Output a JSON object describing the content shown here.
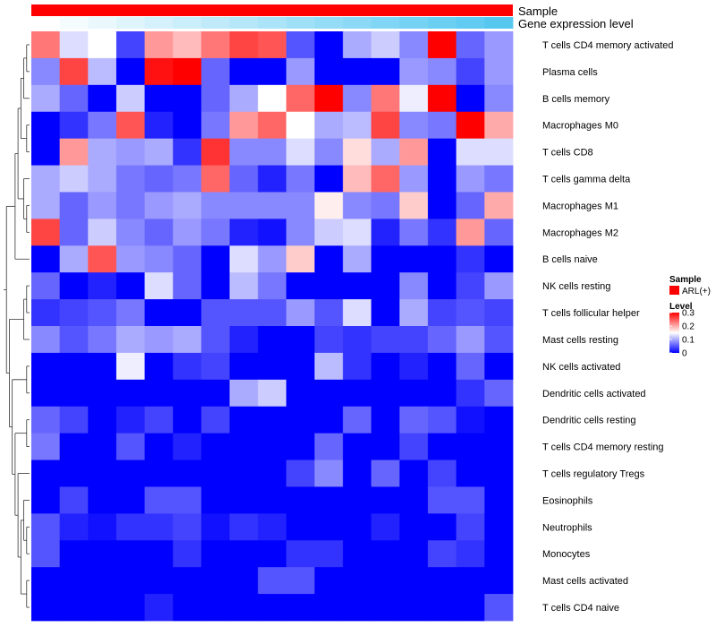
{
  "chart_data": {
    "type": "heatmap",
    "annotations": {
      "sample_label": "Sample",
      "sample_color": "#ff0000",
      "expression_label": "Gene expression level",
      "expression_colors": [
        "#ffffff",
        "#56c8f0"
      ]
    },
    "rows": [
      "T cells CD4 memory activated",
      "Plasma cells",
      "B cells memory",
      "Macrophages M0",
      "T cells CD8",
      "T cells gamma delta",
      "Macrophages M1",
      "Macrophages M2",
      "B cells naive",
      "NK cells resting",
      "T cells follicular helper",
      "Mast cells resting",
      "NK cells activated",
      "Dendritic cells activated",
      "Dendritic cells resting",
      "T cells CD4 memory resting",
      "T cells regulatory  Tregs",
      "Eosinophils",
      "Neutrophils",
      "Monocytes",
      "Mast cells activated",
      "T cells CD4 naive"
    ],
    "values": [
      [
        0.23,
        0.13,
        0.15,
        0.04,
        0.21,
        0.19,
        0.23,
        0.26,
        0.25,
        0.05,
        0.0,
        0.1,
        0.12,
        0.08,
        0.3,
        0.06,
        0.09
      ],
      [
        0.08,
        0.26,
        0.11,
        0.0,
        0.29,
        0.3,
        0.06,
        0.0,
        0.0,
        0.09,
        0.0,
        0.0,
        0.0,
        0.09,
        0.08,
        0.04,
        0.09
      ],
      [
        0.1,
        0.06,
        0.0,
        0.12,
        0.0,
        0.0,
        0.06,
        0.1,
        0.15,
        0.24,
        0.3,
        0.08,
        0.23,
        0.14,
        0.3,
        0.0,
        0.08
      ],
      [
        0.0,
        0.03,
        0.07,
        0.25,
        0.02,
        0.0,
        0.07,
        0.21,
        0.24,
        0.15,
        0.1,
        0.11,
        0.26,
        0.08,
        0.07,
        0.3,
        0.2
      ],
      [
        0.0,
        0.21,
        0.1,
        0.09,
        0.1,
        0.03,
        0.27,
        0.08,
        0.08,
        0.13,
        0.08,
        0.17,
        0.1,
        0.21,
        0.0,
        0.13,
        0.13
      ],
      [
        0.1,
        0.12,
        0.1,
        0.07,
        0.06,
        0.07,
        0.24,
        0.06,
        0.02,
        0.07,
        0.0,
        0.19,
        0.24,
        0.09,
        0.0,
        0.09,
        0.07
      ],
      [
        0.1,
        0.06,
        0.09,
        0.07,
        0.09,
        0.1,
        0.08,
        0.08,
        0.08,
        0.08,
        0.16,
        0.08,
        0.07,
        0.18,
        0.0,
        0.06,
        0.2
      ],
      [
        0.26,
        0.06,
        0.12,
        0.08,
        0.06,
        0.09,
        0.07,
        0.02,
        0.01,
        0.08,
        0.12,
        0.13,
        0.02,
        0.07,
        0.03,
        0.21,
        0.06
      ],
      [
        0.0,
        0.1,
        0.25,
        0.09,
        0.08,
        0.06,
        0.0,
        0.13,
        0.09,
        0.18,
        0.0,
        0.1,
        0.0,
        0.0,
        0.0,
        0.03,
        0.0
      ],
      [
        0.06,
        0.0,
        0.02,
        0.0,
        0.13,
        0.06,
        0.0,
        0.11,
        0.07,
        0.0,
        0.0,
        0.0,
        0.0,
        0.08,
        0.0,
        0.04,
        0.09
      ],
      [
        0.03,
        0.04,
        0.05,
        0.07,
        0.0,
        0.0,
        0.05,
        0.05,
        0.05,
        0.09,
        0.05,
        0.13,
        0.0,
        0.1,
        0.04,
        0.05,
        0.04
      ],
      [
        0.08,
        0.05,
        0.07,
        0.1,
        0.09,
        0.1,
        0.05,
        0.02,
        0.0,
        0.0,
        0.04,
        0.03,
        0.04,
        0.04,
        0.06,
        0.09,
        0.05
      ],
      [
        0.0,
        0.0,
        0.0,
        0.14,
        0.0,
        0.03,
        0.04,
        0.0,
        0.0,
        0.0,
        0.11,
        0.03,
        0.0,
        0.02,
        0.0,
        0.06,
        0.0
      ],
      [
        0.0,
        0.0,
        0.0,
        0.0,
        0.0,
        0.0,
        0.0,
        0.1,
        0.12,
        0.0,
        0.0,
        0.0,
        0.0,
        0.0,
        0.0,
        0.03,
        0.06
      ],
      [
        0.06,
        0.04,
        0.0,
        0.02,
        0.04,
        0.0,
        0.04,
        0.0,
        0.0,
        0.0,
        0.0,
        0.06,
        0.0,
        0.06,
        0.05,
        0.01,
        0.0
      ],
      [
        0.07,
        0.0,
        0.0,
        0.05,
        0.0,
        0.02,
        0.0,
        0.0,
        0.0,
        0.0,
        0.06,
        0.0,
        0.0,
        0.04,
        0.0,
        0.0,
        0.0
      ],
      [
        0.0,
        0.0,
        0.0,
        0.0,
        0.0,
        0.0,
        0.0,
        0.0,
        0.0,
        0.04,
        0.08,
        0.0,
        0.06,
        0.0,
        0.04,
        0.0,
        0.0
      ],
      [
        0.0,
        0.04,
        0.0,
        0.0,
        0.05,
        0.05,
        0.0,
        0.0,
        0.0,
        0.0,
        0.0,
        0.0,
        0.0,
        0.0,
        0.05,
        0.05,
        0.0
      ],
      [
        0.05,
        0.02,
        0.01,
        0.03,
        0.03,
        0.04,
        0.01,
        0.03,
        0.02,
        0.0,
        0.0,
        0.0,
        0.02,
        0.0,
        0.0,
        0.04,
        0.0
      ],
      [
        0.05,
        0.0,
        0.0,
        0.0,
        0.0,
        0.03,
        0.0,
        0.0,
        0.0,
        0.03,
        0.03,
        0.0,
        0.0,
        0.0,
        0.04,
        0.03,
        0.0
      ],
      [
        0.0,
        0.0,
        0.0,
        0.0,
        0.0,
        0.0,
        0.0,
        0.0,
        0.05,
        0.05,
        0.0,
        0.0,
        0.0,
        0.0,
        0.0,
        0.0,
        0.0
      ],
      [
        0.0,
        0.0,
        0.0,
        0.0,
        0.02,
        0.0,
        0.0,
        0.0,
        0.0,
        0.0,
        0.0,
        0.0,
        0.0,
        0.0,
        0.0,
        0.0,
        0.05
      ]
    ],
    "legend": {
      "sample_title": "Sample",
      "sample_entry": "ARL(+)",
      "level_title": "Level",
      "level_ticks": [
        "0.3",
        "0.2",
        "0.1",
        "0"
      ],
      "level_range": [
        0,
        0.3
      ]
    },
    "colors": {
      "low": "#0000ff",
      "mid": "#ffffff",
      "high": "#ff0000",
      "midpoint": 0.15
    }
  }
}
